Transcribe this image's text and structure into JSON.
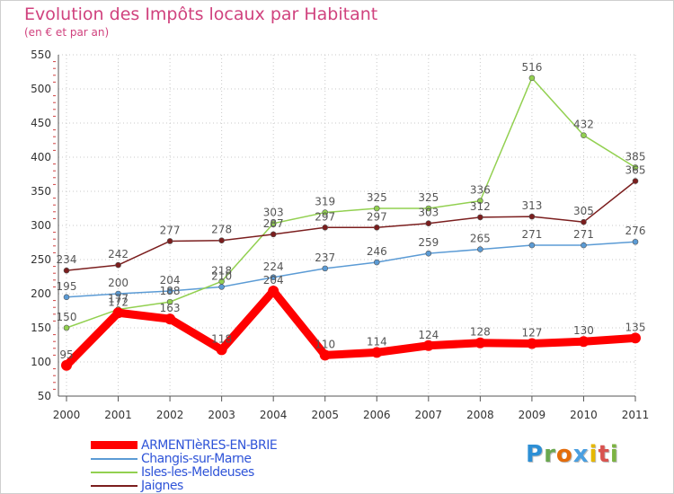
{
  "title": "Evolution des Impôts locaux par Habitant",
  "subtitle": "(en € et par an)",
  "logo_text": "Proxiti",
  "logo_colors": [
    "#2d8fd5",
    "#6aa84f",
    "#e46c0a",
    "#4a9fe0",
    "#e6b800",
    "#d9534f",
    "#7cb342"
  ],
  "chart_data": {
    "type": "line",
    "x": [
      "2000",
      "2001",
      "2002",
      "2003",
      "2004",
      "2005",
      "2006",
      "2007",
      "2008",
      "2009",
      "2010",
      "2011"
    ],
    "ylim": [
      50,
      550
    ],
    "yticks": [
      50,
      100,
      150,
      200,
      250,
      300,
      350,
      400,
      450,
      500,
      550
    ],
    "grid": true,
    "legend_position": "bottom-left",
    "series": [
      {
        "name": "ARMENTIèRES-EN-BRIE",
        "color": "#ff0000",
        "values": [
          95,
          172,
          163,
          118,
          204,
          110,
          114,
          124,
          128,
          127,
          130,
          135
        ]
      },
      {
        "name": "Changis-sur-Marne",
        "color": "#5b9bd5",
        "values": [
          195,
          200,
          204,
          210,
          224,
          237,
          246,
          259,
          265,
          271,
          271,
          276
        ]
      },
      {
        "name": "Isles-les-Meldeuses",
        "color": "#92d050",
        "values": [
          150,
          177,
          188,
          218,
          303,
          319,
          325,
          325,
          336,
          516,
          432,
          385
        ]
      },
      {
        "name": "Jaignes",
        "color": "#7b1e1e",
        "values": [
          234,
          242,
          277,
          278,
          287,
          297,
          297,
          303,
          312,
          313,
          305,
          365
        ]
      }
    ]
  }
}
